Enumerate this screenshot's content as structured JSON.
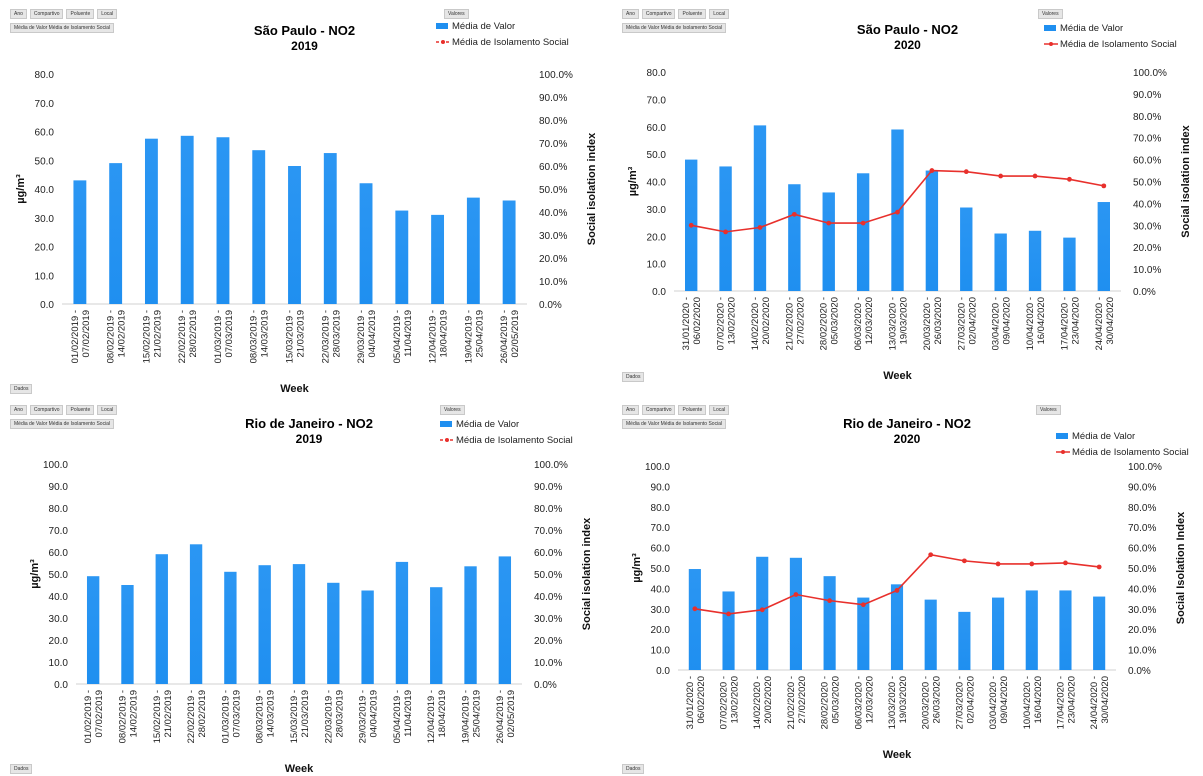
{
  "ui": {
    "filter_buttons": [
      "Ano",
      "Compartivo",
      "Poluente",
      "Local"
    ],
    "values_button": "Média de Valor  Média de Isolamento Social",
    "valores_label": "Valores",
    "dados_button": "Dados"
  },
  "colors": {
    "bar": "#1f8ff0",
    "line": "#e8302c"
  },
  "chart_data": [
    {
      "type": "bar",
      "title": "São Paulo - NO2",
      "subtitle": "2019",
      "xlabel": "Week",
      "ylabel": "µg/m³",
      "y2label": "Social isolation index",
      "ylim": [
        0,
        80
      ],
      "yticks": [
        "0.0",
        "10.0",
        "20.0",
        "30.0",
        "40.0",
        "50.0",
        "60.0",
        "70.0",
        "80.0"
      ],
      "y2ticks": [
        "0.0%",
        "10.0%",
        "20.0%",
        "30.0%",
        "40.0%",
        "50.0%",
        "60.0%",
        "70.0%",
        "80.0%",
        "90.0%",
        "100.0%"
      ],
      "legend": [
        "Média de Valor",
        "Média de Isolamento Social"
      ],
      "legend_position": "top-right",
      "categories": [
        "01/02/2019 - 07/02/2019",
        "08/02/2019 - 14/02/2019",
        "15/02/2019 - 21/02/2019",
        "22/02/2019 - 28/02/2019",
        "01/03/2019 - 07/03/2019",
        "08/03/2019 - 14/03/2019",
        "15/03/2019 - 21/03/2019",
        "22/03/2019 - 28/03/2019",
        "29/03/2019 - 04/04/2019",
        "05/04/2019 - 11/04/2019",
        "12/04/2019 - 18/04/2019",
        "19/04/2019 - 25/04/2019",
        "26/04/2019 - 02/05/2019"
      ],
      "series": [
        {
          "name": "Média de Valor",
          "values": [
            43.0,
            49.0,
            57.5,
            58.5,
            58.0,
            53.5,
            48.0,
            52.5,
            42.0,
            32.5,
            31.0,
            37.0,
            36.0
          ]
        }
      ]
    },
    {
      "type": "bar",
      "title": "São Paulo - NO2",
      "subtitle": "2020",
      "xlabel": "Week",
      "ylabel": "µg/m³",
      "y2label": "Social isolation index",
      "ylim": [
        0,
        80
      ],
      "yticks": [
        "0.0",
        "10.0",
        "20.0",
        "30.0",
        "40.0",
        "50.0",
        "60.0",
        "70.0",
        "80.0"
      ],
      "y2ticks": [
        "0.0%",
        "10.0%",
        "20.0%",
        "30.0%",
        "40.0%",
        "50.0%",
        "60.0%",
        "70.0%",
        "80.0%",
        "90.0%",
        "100.0%"
      ],
      "legend": [
        "Média de Valor",
        "Média de Isolamento Social"
      ],
      "legend_position": "top-right",
      "categories": [
        "31/01/2020 - 06/02/2020",
        "07/02/2020 - 13/02/2020",
        "14/02/2020 - 20/02/2020",
        "21/02/2020 - 27/02/2020",
        "28/02/2020 - 05/03/2020",
        "06/03/2020 - 12/03/2020",
        "13/03/2020 - 19/03/2020",
        "20/03/2020 - 26/03/2020",
        "27/03/2020 - 02/04/2020",
        "03/04/2020 - 09/04/2020",
        "10/04/2020 - 16/04/2020",
        "17/04/2020 - 23/04/2020",
        "24/04/2020 - 30/04/2020"
      ],
      "series": [
        {
          "name": "Média de Valor",
          "values": [
            48.0,
            45.5,
            60.5,
            39.0,
            36.0,
            43.0,
            59.0,
            44.0,
            30.5,
            21.0,
            22.0,
            19.5,
            32.5
          ]
        },
        {
          "name": "Média de Isolamento Social",
          "axis": "right",
          "values": [
            0.3,
            0.27,
            0.29,
            0.35,
            0.31,
            0.31,
            0.36,
            0.55,
            0.545,
            0.525,
            0.525,
            0.51,
            0.48
          ]
        }
      ]
    },
    {
      "type": "bar",
      "title": "Rio de Janeiro - NO2",
      "subtitle": "2019",
      "xlabel": "Week",
      "ylabel": "µg/m³",
      "y2label": "Social isolation index",
      "ylim": [
        0,
        100
      ],
      "yticks": [
        "0.0",
        "10.0",
        "20.0",
        "30.0",
        "40.0",
        "50.0",
        "60.0",
        "70.0",
        "80.0",
        "90.0",
        "100.0"
      ],
      "y2ticks": [
        "0.0%",
        "10.0%",
        "20.0%",
        "30.0%",
        "40.0%",
        "50.0%",
        "60.0%",
        "70.0%",
        "80.0%",
        "90.0%",
        "100.0%"
      ],
      "legend": [
        "Média de Valor",
        "Média de Isolamento Social"
      ],
      "legend_position": "top-right",
      "categories": [
        "01/02/2019 - 07/02/2019",
        "08/02/2019 - 14/02/2019",
        "15/02/2019 - 21/02/2019",
        "22/02/2019 - 28/02/2019",
        "01/03/2019 - 07/03/2019",
        "08/03/2019 - 14/03/2019",
        "15/03/2019 - 21/03/2019",
        "22/03/2019 - 28/03/2019",
        "29/03/2019 - 04/04/2019",
        "05/04/2019 - 11/04/2019",
        "12/04/2019 - 18/04/2019",
        "19/04/2019 - 25/04/2019",
        "26/04/2019 - 02/05/2019"
      ],
      "series": [
        {
          "name": "Média de Valor",
          "values": [
            49.0,
            45.0,
            59.0,
            63.5,
            51.0,
            54.0,
            54.5,
            46.0,
            42.5,
            55.5,
            44.0,
            53.5,
            58.0
          ]
        }
      ]
    },
    {
      "type": "bar",
      "title": "Rio de Janeiro - NO2",
      "subtitle": "2020",
      "xlabel": "Week",
      "ylabel": "µg/m³",
      "y2label": "Social Isolation Index",
      "ylim": [
        0,
        100
      ],
      "yticks": [
        "0.0",
        "10.0",
        "20.0",
        "30.0",
        "40.0",
        "50.0",
        "60.0",
        "70.0",
        "80.0",
        "90.0",
        "100.0"
      ],
      "y2ticks": [
        "0.0%",
        "10.0%",
        "20.0%",
        "30.0%",
        "40.0%",
        "50.0%",
        "60.0%",
        "70.0%",
        "80.0%",
        "90.0%",
        "100.0%"
      ],
      "legend": [
        "Média de Valor",
        "Média de Isolamento Social"
      ],
      "legend_position": "top-right",
      "categories": [
        "31/01/2020 - 06/02/2020",
        "07/02/2020 - 13/02/2020",
        "14/02/2020 - 20/02/2020",
        "21/02/2020 - 27/02/2020",
        "28/02/2020 - 05/03/2020",
        "06/03/2020 - 12/03/2020",
        "13/03/2020 - 19/03/2020",
        "20/03/2020 - 26/03/2020",
        "27/03/2020 - 02/04/2020",
        "03/04/2020 - 09/04/2020",
        "10/04/2020 - 16/04/2020",
        "17/04/2020 - 23/04/2020",
        "24/04/2020 - 30/04/2020"
      ],
      "series": [
        {
          "name": "Média de Valor",
          "values": [
            49.5,
            38.5,
            55.5,
            55.0,
            46.0,
            35.5,
            42.0,
            34.5,
            28.5,
            35.5,
            39.0,
            39.0,
            36.0
          ]
        },
        {
          "name": "Média de Isolamento Social",
          "axis": "right",
          "values": [
            0.3,
            0.275,
            0.295,
            0.37,
            0.34,
            0.32,
            0.39,
            0.565,
            0.535,
            0.52,
            0.52,
            0.525,
            0.505
          ]
        }
      ]
    }
  ]
}
